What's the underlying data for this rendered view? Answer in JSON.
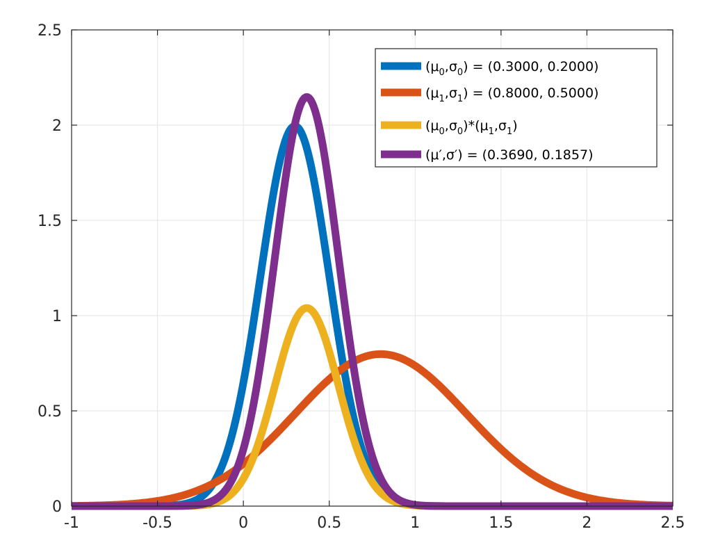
{
  "chart_data": {
    "type": "line",
    "title": "",
    "xlabel": "",
    "ylabel": "",
    "xlim": [
      -1,
      2.5
    ],
    "ylim": [
      0,
      2.5
    ],
    "grid": true,
    "legend_position": "top-right",
    "x_ticks": [
      "-1",
      "-0.5",
      "0",
      "0.5",
      "1",
      "1.5",
      "2",
      "2.5"
    ],
    "y_ticks": [
      "0",
      "0.5",
      "1",
      "1.5",
      "2",
      "2.5"
    ],
    "series": [
      {
        "name": "(μ0,σ0) = (0.3000, 0.2000)",
        "legend": {
          "pre": "(μ",
          "s1": "0",
          "mid": ",σ",
          "s2": "0",
          "post": ") = (0.3000, 0.2000)"
        },
        "color": "#0072BD",
        "mu": 0.3,
        "sigma": 0.2,
        "peak": 1.995
      },
      {
        "name": "(μ1,σ1) = (0.8000, 0.5000)",
        "legend": {
          "pre": "(μ",
          "s1": "1",
          "mid": ",σ",
          "s2": "1",
          "post": ") = (0.8000, 0.5000)"
        },
        "color": "#D95319",
        "mu": 0.8,
        "sigma": 0.5,
        "peak": 0.798
      },
      {
        "name": "(μ0,σ0)*(μ1,σ1)",
        "legend": {
          "pre": "(μ",
          "s1": "0",
          "mid": ",σ",
          "s2": "0",
          "post": ")*(μ",
          "s3": "1",
          "mid2": ",σ",
          "s4": "1",
          "post2": ")"
        },
        "color": "#EDB120",
        "mu": 0.369,
        "sigma": 0.1857,
        "peak": 1.04
      },
      {
        "name": "(μ′,σ′) = (0.3690, 0.1857)",
        "legend": {
          "pre": "(μ′,σ′) = (0.3690, 0.1857)"
        },
        "color": "#7E2F8E",
        "mu": 0.369,
        "sigma": 0.1857,
        "peak": 2.148
      }
    ]
  }
}
